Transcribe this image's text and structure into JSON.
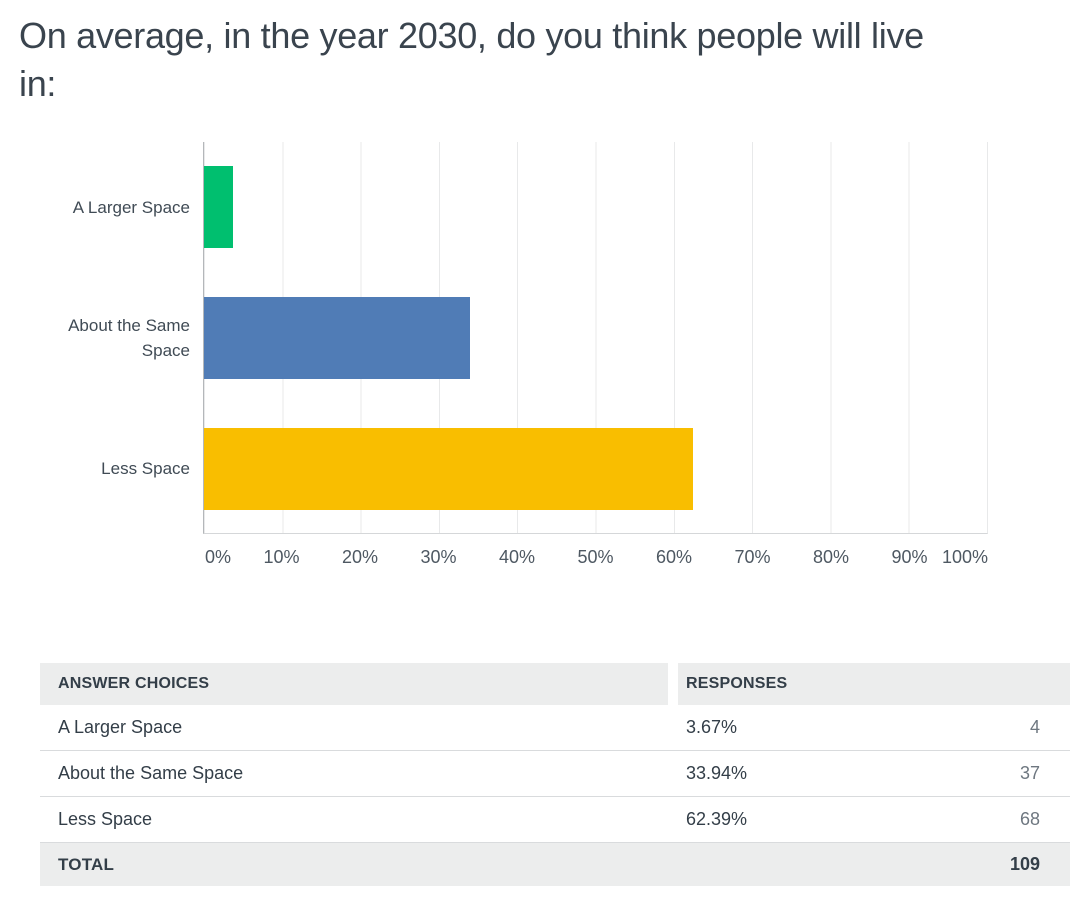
{
  "question": {
    "title": "On average, in the year 2030, do you think people will live in:",
    "title_lines": [
      "On average, in the year 2030, do you think people will live",
      "in:"
    ]
  },
  "chart_data": {
    "type": "bar",
    "orientation": "horizontal",
    "title": "",
    "categories": [
      "A Larger Space",
      "About the Same Space",
      "Less Space"
    ],
    "values": [
      3.67,
      33.94,
      62.39
    ],
    "value_labels": [
      "3.67%",
      "33.94%",
      "62.39%"
    ],
    "bar_colors": [
      "#00BF6F",
      "#507CB6",
      "#F9BE00"
    ],
    "xlim": [
      0,
      100
    ],
    "x_ticks": [
      "0%",
      "10%",
      "20%",
      "30%",
      "40%",
      "50%",
      "60%",
      "70%",
      "80%",
      "90%",
      "100%"
    ],
    "grid": "vertical-gridlines-on",
    "legend": "none",
    "xlabel": "",
    "ylabel": ""
  },
  "table": {
    "headers": {
      "answer_choices": "ANSWER CHOICES",
      "responses": "RESPONSES"
    },
    "rows": [
      {
        "label": "A Larger Space",
        "percent": "3.67%",
        "count": "4"
      },
      {
        "label": "About the Same Space",
        "percent": "33.94%",
        "count": "37"
      },
      {
        "label": "Less Space",
        "percent": "62.39%",
        "count": "68"
      }
    ],
    "total": {
      "label": "TOTAL",
      "count": "109"
    }
  },
  "colors": {
    "text": "#333E48",
    "muted_count_text": "#6E7780",
    "gridline": "#E8E9EA",
    "axis_line": "#B4B7BA",
    "table_header_bg": "#ECEDED",
    "row_border": "#D9DBDD"
  }
}
